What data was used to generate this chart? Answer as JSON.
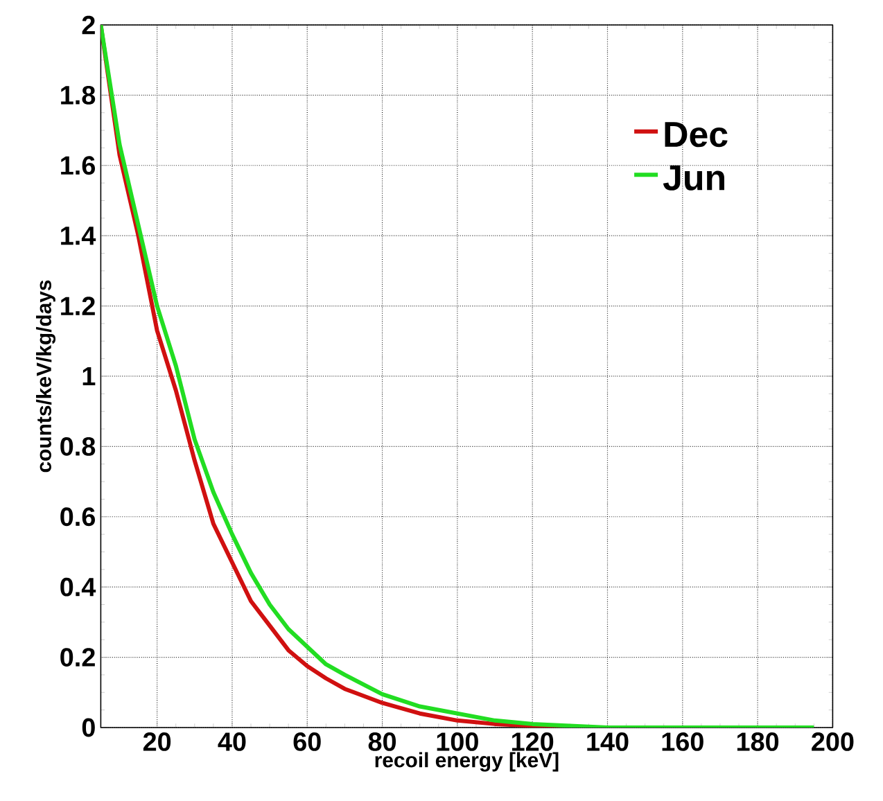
{
  "chart_data": {
    "type": "line",
    "xlabel": "recoil energy [keV]",
    "ylabel": "counts/keV/kg/days",
    "x": [
      5,
      10,
      15,
      20,
      25,
      30,
      35,
      40,
      45,
      50,
      55,
      60,
      65,
      70,
      80,
      90,
      100,
      110,
      120,
      130,
      140,
      160,
      180,
      195
    ],
    "series": [
      {
        "name": "Dec",
        "color": "#d01010",
        "values": [
          2.0,
          1.63,
          1.4,
          1.13,
          0.96,
          0.76,
          0.58,
          0.47,
          0.36,
          0.29,
          0.22,
          0.175,
          0.14,
          0.11,
          0.07,
          0.04,
          0.02,
          0.01,
          0.005,
          0,
          0,
          null,
          null,
          null
        ]
      },
      {
        "name": "Jun",
        "color": "#22dd22",
        "values": [
          2.0,
          1.66,
          1.43,
          1.2,
          1.03,
          0.82,
          0.67,
          0.55,
          0.44,
          0.35,
          0.28,
          0.23,
          0.18,
          0.15,
          0.095,
          0.06,
          0.04,
          0.02,
          0.01,
          0.005,
          0,
          0,
          0,
          0
        ]
      }
    ],
    "xlim": [
      5,
      200
    ],
    "ylim": [
      0,
      2
    ],
    "xticks": [
      20,
      40,
      60,
      80,
      100,
      120,
      140,
      160,
      180,
      200
    ],
    "yticks": [
      0,
      0.2,
      0.4,
      0.6,
      0.8,
      1,
      1.2,
      1.4,
      1.6,
      1.8,
      2
    ],
    "grid": true,
    "legend": "top right",
    "marker": "none",
    "line_style": "solid"
  }
}
